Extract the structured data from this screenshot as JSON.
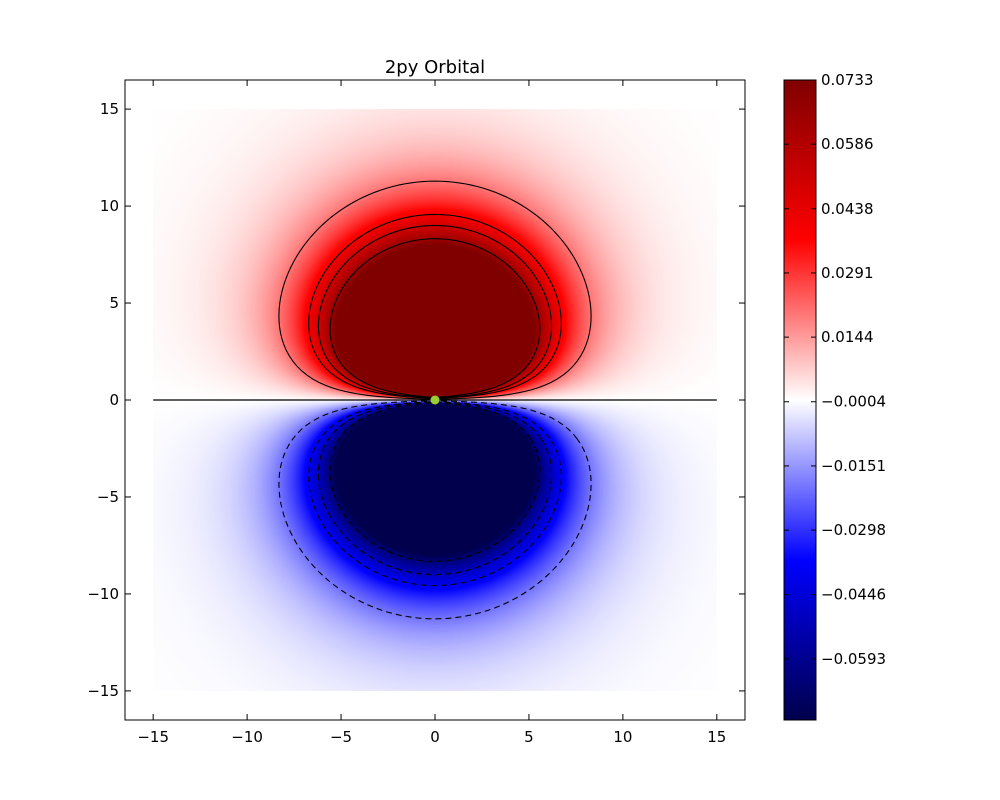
{
  "chart_data": {
    "type": "heatmap",
    "title": "2py Orbital",
    "xlabel": "",
    "ylabel": "",
    "xlim": [
      -16.5,
      16.5
    ],
    "ylim": [
      -16.5,
      16.5
    ],
    "data_extent": [
      -15,
      15
    ],
    "x_ticks": [
      -15,
      -10,
      -5,
      0,
      5,
      10,
      15
    ],
    "x_tick_labels": [
      "−15",
      "−10",
      "−5",
      "0",
      "5",
      "10",
      "15"
    ],
    "y_ticks": [
      15,
      10,
      5,
      0,
      -5,
      -10,
      -15
    ],
    "y_tick_labels": [
      "15",
      "10",
      "5",
      "0",
      "−5",
      "−10",
      "−15"
    ],
    "grid": false,
    "field": "psi = y * exp(-r/2) / 2, r = sqrt(x^2 + y^2)",
    "value_range": [
      -0.0733,
      0.0733
    ],
    "colormap": "seismic",
    "colorbar": {
      "range": [
        -0.0733,
        0.0733
      ],
      "ticks": [
        0.0733,
        0.0586,
        0.0438,
        0.0291,
        0.0144,
        -0.0004,
        -0.0151,
        -0.0298,
        -0.0446,
        -0.0593
      ],
      "tick_labels": [
        "0.0733",
        "0.0586",
        "0.0438",
        "0.0291",
        "0.0144",
        "−0.0004",
        "−0.0151",
        "−0.0298",
        "−0.0446",
        "−0.0593"
      ]
    },
    "contours": {
      "positive_levels": [
        0.02,
        0.04,
        0.05,
        0.065
      ],
      "negative_levels": [
        -0.02,
        -0.04,
        -0.05,
        -0.065
      ],
      "zero_level": 0,
      "positive_style": "solid",
      "negative_style": "dashed",
      "color": "#000000"
    },
    "nucleus": {
      "x": 0,
      "y": 0,
      "color": "#9acd32"
    }
  }
}
